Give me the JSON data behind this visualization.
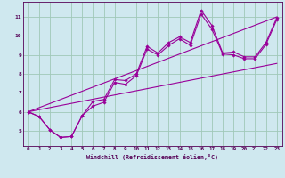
{
  "background_color": "#cfe8ef",
  "grid_color": "#a0c8b8",
  "line_color": "#990099",
  "marker_color": "#990099",
  "xlabel": "Windchill (Refroidissement éolien,°C)",
  "xlabel_color": "#550055",
  "tick_color": "#550055",
  "xlim": [
    -0.5,
    23.5
  ],
  "ylim": [
    4.2,
    11.8
  ],
  "yticks": [
    5,
    6,
    7,
    8,
    9,
    10,
    11
  ],
  "xticks": [
    0,
    1,
    2,
    3,
    4,
    5,
    6,
    7,
    8,
    9,
    10,
    11,
    12,
    13,
    14,
    15,
    16,
    17,
    18,
    19,
    20,
    21,
    22,
    23
  ],
  "series1_x": [
    0,
    1,
    2,
    3,
    4,
    5,
    6,
    7,
    8,
    9,
    10,
    11,
    12,
    13,
    14,
    15,
    16,
    17,
    18,
    19,
    20,
    21,
    22,
    23
  ],
  "series1_y": [
    6.0,
    5.75,
    5.05,
    4.65,
    4.7,
    5.8,
    6.55,
    6.65,
    7.7,
    7.65,
    8.0,
    9.45,
    9.1,
    9.65,
    9.95,
    9.65,
    11.35,
    10.55,
    9.1,
    9.15,
    8.9,
    8.9,
    9.65,
    10.95
  ],
  "series2_x": [
    0,
    1,
    2,
    3,
    4,
    5,
    6,
    7,
    8,
    9,
    10,
    11,
    12,
    13,
    14,
    15,
    16,
    17,
    18,
    19,
    20,
    21,
    22,
    23
  ],
  "series2_y": [
    6.0,
    5.75,
    5.05,
    4.65,
    4.7,
    5.8,
    6.3,
    6.5,
    7.55,
    7.45,
    7.9,
    9.3,
    9.0,
    9.5,
    9.85,
    9.5,
    11.15,
    10.35,
    9.05,
    9.0,
    8.8,
    8.8,
    9.55,
    10.85
  ],
  "series3_x": [
    0,
    23
  ],
  "series3_y": [
    6.0,
    11.0
  ],
  "series4_x": [
    0,
    23
  ],
  "series4_y": [
    6.0,
    8.55
  ]
}
